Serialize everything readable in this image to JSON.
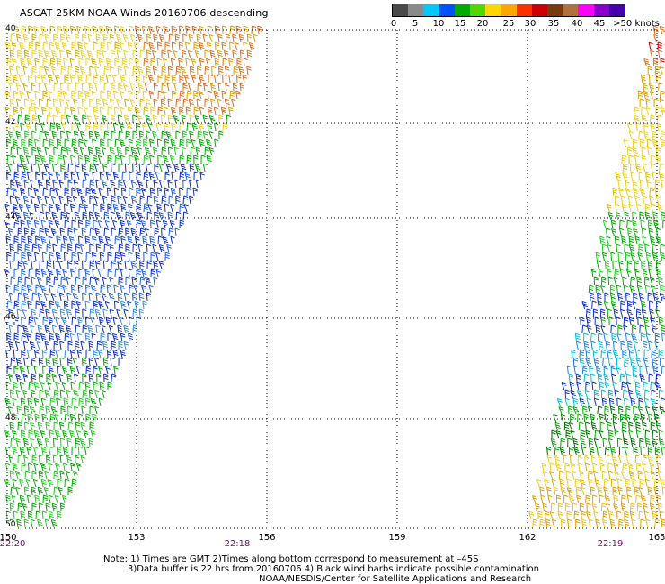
{
  "title": "ASCAT 25KM NOAA Winds 20160706 descending",
  "colorbar": {
    "labels": [
      "0",
      "5",
      "10",
      "15",
      "20",
      "25",
      "30",
      "35",
      "40",
      "45",
      ">50 knots"
    ],
    "colors": [
      "#4a4a4a",
      "#8a8a8a",
      "#00c8ff",
      "#0050ff",
      "#00aa00",
      "#50d800",
      "#ffd700",
      "#ffa500",
      "#ff3000",
      "#cc0000",
      "#7a3a10",
      "#b07040",
      "#ff00ff",
      "#8800cc",
      "#4400aa"
    ]
  },
  "map": {
    "lat_labels": [
      "40",
      "42",
      "44",
      "46",
      "48",
      "50"
    ],
    "lon_labels": [
      "150",
      "153",
      "156",
      "159",
      "162",
      "165"
    ],
    "time_labels": [
      "22:20",
      "22:18",
      "22:19"
    ]
  },
  "notes": {
    "line1": "Note: 1) Times are GMT 2)Times along bottom correspond to measurement at –45S",
    "line2": "3)Data buffer is 22 hrs from 20160706 4) Black wind barbs indicate possible contamination",
    "line3": "NOAA/NESDIS/Center for Satellite Applications and Research"
  }
}
